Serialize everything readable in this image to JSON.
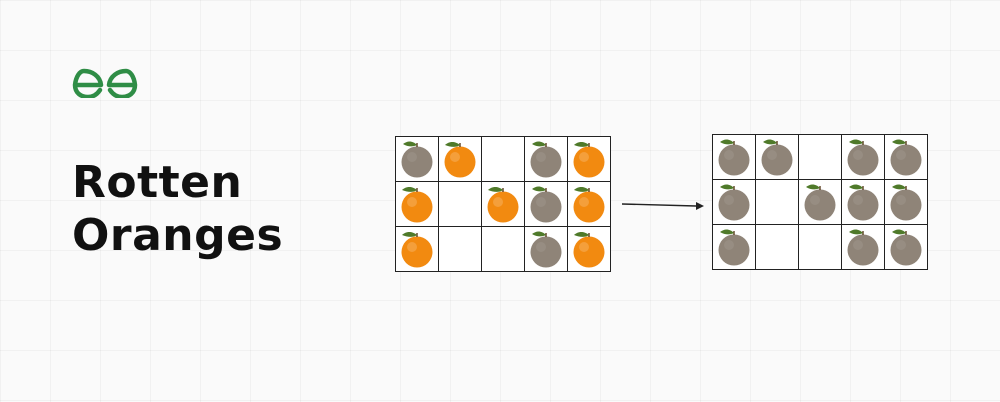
{
  "brand": {
    "logo_icon": "geeksforgeeks-logo-icon",
    "color": "#2f8d46"
  },
  "title": {
    "line1": "Rotten",
    "line2": "Oranges"
  },
  "colors": {
    "fresh_orange": "#f28a10",
    "rotten_orange": "#8f8478",
    "leaf": "#4f7a2a",
    "grid_line": "#222222"
  },
  "grid_before": [
    [
      "rotten",
      "fresh",
      "empty",
      "rotten",
      "fresh"
    ],
    [
      "fresh",
      "empty",
      "fresh",
      "rotten",
      "fresh"
    ],
    [
      "fresh",
      "empty",
      "empty",
      "rotten",
      "fresh"
    ]
  ],
  "grid_after": [
    [
      "rotten",
      "rotten",
      "empty",
      "rotten",
      "rotten"
    ],
    [
      "rotten",
      "empty",
      "rotten",
      "rotten",
      "rotten"
    ],
    [
      "rotten",
      "empty",
      "empty",
      "rotten",
      "rotten"
    ]
  ]
}
